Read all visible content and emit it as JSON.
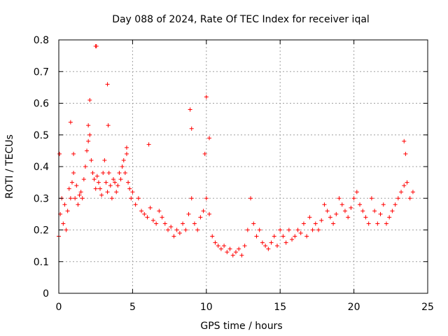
{
  "chart_data": {
    "type": "scatter",
    "title": "Day 088 of 2024, Rate Of TEC Index for receiver iqal",
    "xlabel": "GPS time / hours",
    "ylabel": "ROTI / TECUs",
    "xlim": [
      0,
      25
    ],
    "ylim": [
      0,
      0.8
    ],
    "xticks": [
      0,
      5,
      10,
      15,
      20,
      25
    ],
    "yticks": [
      0,
      0.1,
      0.2,
      0.3,
      0.4,
      0.5,
      0.6,
      0.7,
      0.8
    ],
    "xtick_labels": [
      "0",
      "5",
      "10",
      "15",
      "20",
      "25"
    ],
    "ytick_labels": [
      "0",
      "0.1",
      "0.2",
      "0.3",
      "0.4",
      "0.5",
      "0.6",
      "0.7",
      "0.8"
    ],
    "grid": true,
    "marker": "+",
    "color": "#ff0000",
    "series": [
      {
        "name": "ROTI",
        "x": [
          0.0,
          0.1,
          0.2,
          0.3,
          0.4,
          0.5,
          0.6,
          0.7,
          0.8,
          0.9,
          1.0,
          1.1,
          1.2,
          1.3,
          1.4,
          1.5,
          1.6,
          1.7,
          1.8,
          1.9,
          2.0,
          2.1,
          2.2,
          2.3,
          2.4,
          2.5,
          2.6,
          2.7,
          2.8,
          2.9,
          3.0,
          3.1,
          3.2,
          3.3,
          3.4,
          3.5,
          3.6,
          3.7,
          3.8,
          3.9,
          4.0,
          4.1,
          4.2,
          4.3,
          4.4,
          4.5,
          4.6,
          4.7,
          4.8,
          4.9,
          5.0,
          5.2,
          5.4,
          5.6,
          5.8,
          6.0,
          6.2,
          6.4,
          6.6,
          6.8,
          7.0,
          7.2,
          7.4,
          7.6,
          7.8,
          8.0,
          8.2,
          8.4,
          8.6,
          8.8,
          9.0,
          9.2,
          9.4,
          9.6,
          9.8,
          10.0,
          10.2,
          10.4,
          10.6,
          10.8,
          11.0,
          11.2,
          11.4,
          11.6,
          11.8,
          12.0,
          12.2,
          12.4,
          12.6,
          12.8,
          13.0,
          13.2,
          13.4,
          13.6,
          13.8,
          14.0,
          14.2,
          14.4,
          14.6,
          14.8,
          15.0,
          15.2,
          15.4,
          15.6,
          15.8,
          16.0,
          16.2,
          16.4,
          16.6,
          16.8,
          17.0,
          17.2,
          17.4,
          17.6,
          17.8,
          18.0,
          18.2,
          18.4,
          18.6,
          18.8,
          19.0,
          19.2,
          19.4,
          19.6,
          19.8,
          20.0,
          20.2,
          20.4,
          20.6,
          20.8,
          21.0,
          21.2,
          21.4,
          21.6,
          21.8,
          22.0,
          22.2,
          22.4,
          22.6,
          22.8,
          23.0,
          23.2,
          23.4,
          23.6,
          23.8,
          24.0,
          0.05,
          0.8,
          1.0,
          2.0,
          2.1,
          2.5,
          2.55,
          3.3,
          3.35,
          8.9,
          9.0,
          9.9,
          10.0,
          10.2,
          23.4,
          23.5,
          4.6,
          6.1
        ],
        "y": [
          0.18,
          0.25,
          0.3,
          0.22,
          0.28,
          0.2,
          0.26,
          0.33,
          0.3,
          0.35,
          0.38,
          0.3,
          0.34,
          0.28,
          0.31,
          0.32,
          0.3,
          0.36,
          0.4,
          0.45,
          0.48,
          0.5,
          0.42,
          0.38,
          0.36,
          0.33,
          0.37,
          0.35,
          0.33,
          0.31,
          0.38,
          0.42,
          0.35,
          0.32,
          0.38,
          0.34,
          0.3,
          0.36,
          0.35,
          0.32,
          0.34,
          0.38,
          0.36,
          0.4,
          0.42,
          0.38,
          0.44,
          0.35,
          0.33,
          0.3,
          0.32,
          0.28,
          0.3,
          0.26,
          0.25,
          0.24,
          0.27,
          0.23,
          0.22,
          0.26,
          0.24,
          0.22,
          0.2,
          0.21,
          0.18,
          0.2,
          0.19,
          0.22,
          0.2,
          0.25,
          0.3,
          0.22,
          0.2,
          0.24,
          0.26,
          0.3,
          0.25,
          0.18,
          0.16,
          0.15,
          0.14,
          0.15,
          0.13,
          0.14,
          0.12,
          0.13,
          0.14,
          0.12,
          0.15,
          0.2,
          0.3,
          0.22,
          0.18,
          0.2,
          0.16,
          0.15,
          0.14,
          0.16,
          0.18,
          0.15,
          0.2,
          0.18,
          0.16,
          0.2,
          0.17,
          0.18,
          0.2,
          0.19,
          0.22,
          0.18,
          0.24,
          0.2,
          0.22,
          0.2,
          0.23,
          0.28,
          0.26,
          0.24,
          0.22,
          0.25,
          0.3,
          0.28,
          0.26,
          0.24,
          0.27,
          0.3,
          0.32,
          0.28,
          0.26,
          0.24,
          0.22,
          0.3,
          0.26,
          0.22,
          0.25,
          0.28,
          0.22,
          0.24,
          0.26,
          0.28,
          0.3,
          0.32,
          0.34,
          0.35,
          0.3,
          0.32,
          0.44,
          0.54,
          0.44,
          0.53,
          0.61,
          0.78,
          0.78,
          0.66,
          0.53,
          0.58,
          0.52,
          0.44,
          0.62,
          0.49,
          0.48,
          0.44,
          0.46,
          0.47
        ]
      }
    ]
  }
}
